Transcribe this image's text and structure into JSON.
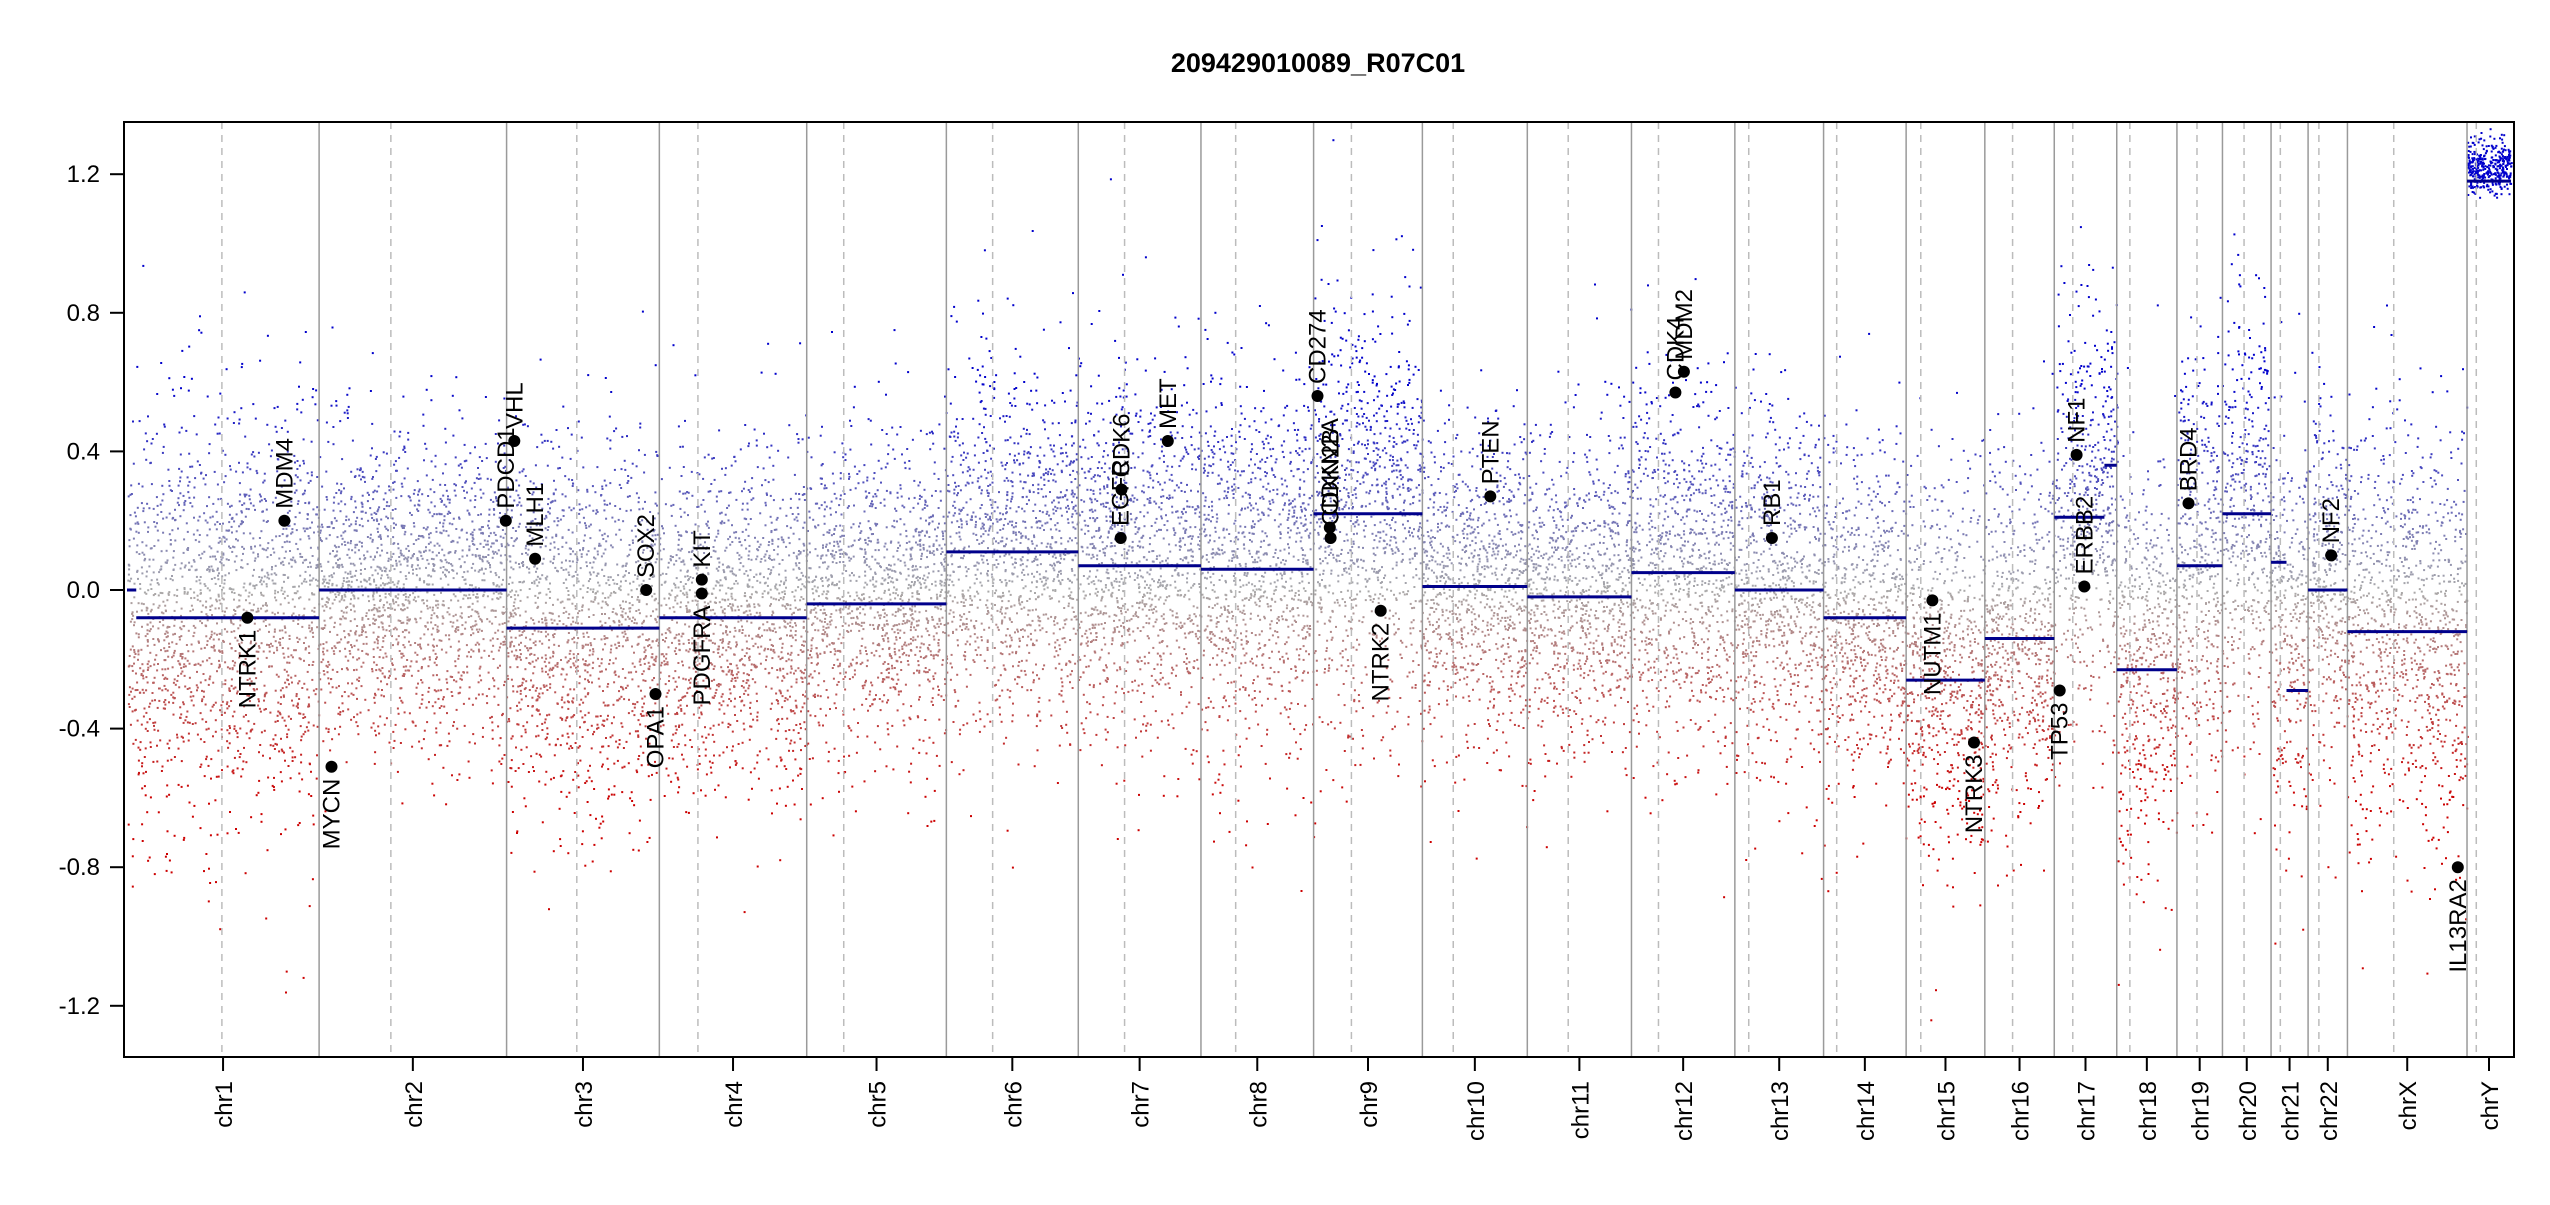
{
  "chart_data": {
    "type": "scatter",
    "title": "209429010089_R07C01",
    "xlabel": "",
    "ylabel": "",
    "ylim": [
      -1.35,
      1.35
    ],
    "yticks": [
      1.2,
      0.8,
      0.4,
      0.0,
      -0.4,
      -0.8,
      -1.2
    ],
    "ytick_labels": [
      "1.2",
      "0.8",
      "0.4",
      "0.0",
      "-0.4",
      "-0.8",
      "-1.2"
    ],
    "x_axis": "genomic position",
    "grid": false,
    "colors": {
      "gain": "#0000cc",
      "neutral": "#aaaaaa",
      "loss": "#cc0000",
      "segment": "#00008b",
      "gene_point": "#000000",
      "chrom_border": "#9a9a9a",
      "centromere": "#bcbcbc"
    },
    "chromosomes": [
      {
        "name": "chr1",
        "length": 249,
        "centromere": 123,
        "segments": [
          {
            "start": 0,
            "end": 12,
            "value": 0.0
          },
          {
            "start": 12,
            "end": 249,
            "value": -0.08
          }
        ],
        "level": -0.08,
        "spread": 0.3
      },
      {
        "name": "chr2",
        "length": 243,
        "centromere": 93,
        "segments": [
          {
            "start": 0,
            "end": 243,
            "value": 0.0
          }
        ],
        "level": 0.0,
        "spread": 0.22
      },
      {
        "name": "chr3",
        "length": 198,
        "centromere": 91,
        "segments": [
          {
            "start": 0,
            "end": 198,
            "value": -0.11
          }
        ],
        "level": -0.1,
        "spread": 0.27
      },
      {
        "name": "chr4",
        "length": 191,
        "centromere": 50,
        "segments": [
          {
            "start": 0,
            "end": 191,
            "value": -0.08
          }
        ],
        "level": -0.08,
        "spread": 0.24
      },
      {
        "name": "chr5",
        "length": 181,
        "centromere": 48,
        "segments": [
          {
            "start": 0,
            "end": 181,
            "value": -0.04
          }
        ],
        "level": -0.03,
        "spread": 0.22
      },
      {
        "name": "chr6",
        "length": 171,
        "centromere": 60,
        "segments": [
          {
            "start": 0,
            "end": 171,
            "value": 0.11
          }
        ],
        "level": 0.1,
        "spread": 0.26
      },
      {
        "name": "chr7",
        "length": 159,
        "centromere": 60,
        "segments": [
          {
            "start": 0,
            "end": 159,
            "value": 0.07
          }
        ],
        "level": 0.07,
        "spread": 0.27
      },
      {
        "name": "chr8",
        "length": 146,
        "centromere": 45,
        "segments": [
          {
            "start": 0,
            "end": 146,
            "value": 0.06
          }
        ],
        "level": 0.06,
        "spread": 0.28
      },
      {
        "name": "chr9",
        "length": 141,
        "centromere": 49,
        "segments": [
          {
            "start": 0,
            "end": 141,
            "value": 0.22
          }
        ],
        "level": 0.2,
        "spread": 0.3
      },
      {
        "name": "chr10",
        "length": 136,
        "centromere": 40,
        "segments": [
          {
            "start": 0,
            "end": 136,
            "value": 0.01
          }
        ],
        "level": 0.01,
        "spread": 0.23
      },
      {
        "name": "chr11",
        "length": 135,
        "centromere": 53,
        "segments": [
          {
            "start": 0,
            "end": 135,
            "value": -0.02
          }
        ],
        "level": -0.02,
        "spread": 0.23
      },
      {
        "name": "chr12",
        "length": 134,
        "centromere": 35,
        "segments": [
          {
            "start": 0,
            "end": 134,
            "value": 0.05
          }
        ],
        "level": 0.05,
        "spread": 0.27
      },
      {
        "name": "chr13",
        "length": 115,
        "centromere": 18,
        "segments": [
          {
            "start": 0,
            "end": 115,
            "value": 0.0
          }
        ],
        "level": 0.0,
        "spread": 0.25
      },
      {
        "name": "chr14",
        "length": 107,
        "centromere": 17,
        "segments": [
          {
            "start": 0,
            "end": 107,
            "value": -0.08
          }
        ],
        "level": -0.08,
        "spread": 0.25
      },
      {
        "name": "chr15",
        "length": 102,
        "centromere": 19,
        "segments": [
          {
            "start": 0,
            "end": 102,
            "value": -0.26
          }
        ],
        "level": -0.24,
        "spread": 0.28
      },
      {
        "name": "chr16",
        "length": 90,
        "centromere": 36,
        "segments": [
          {
            "start": 0,
            "end": 90,
            "value": -0.14
          }
        ],
        "level": -0.13,
        "spread": 0.26
      },
      {
        "name": "chr17",
        "length": 81,
        "centromere": 24,
        "segments": [
          {
            "start": 0,
            "end": 65,
            "value": 0.21
          },
          {
            "start": 65,
            "end": 81,
            "value": 0.36
          }
        ],
        "level": 0.25,
        "spread": 0.3
      },
      {
        "name": "chr18",
        "length": 78,
        "centromere": 17,
        "segments": [
          {
            "start": 0,
            "end": 78,
            "value": -0.23
          }
        ],
        "level": -0.23,
        "spread": 0.28
      },
      {
        "name": "chr19",
        "length": 59,
        "centromere": 26,
        "segments": [
          {
            "start": 0,
            "end": 59,
            "value": 0.07
          }
        ],
        "level": 0.07,
        "spread": 0.3
      },
      {
        "name": "chr20",
        "length": 63,
        "centromere": 28,
        "segments": [
          {
            "start": 0,
            "end": 63,
            "value": 0.22
          }
        ],
        "level": 0.22,
        "spread": 0.3
      },
      {
        "name": "chr21",
        "length": 48,
        "centromere": 12,
        "segments": [
          {
            "start": 0,
            "end": 20,
            "value": 0.08
          },
          {
            "start": 20,
            "end": 48,
            "value": -0.29
          }
        ],
        "level": -0.1,
        "spread": 0.28
      },
      {
        "name": "chr22",
        "length": 51,
        "centromere": 14,
        "segments": [
          {
            "start": 0,
            "end": 51,
            "value": 0.0
          }
        ],
        "level": 0.0,
        "spread": 0.25
      },
      {
        "name": "chrX",
        "length": 155,
        "centromere": 60,
        "segments": [
          {
            "start": 0,
            "end": 155,
            "value": -0.12
          }
        ],
        "level": -0.12,
        "spread": 0.3
      },
      {
        "name": "chrY",
        "length": 57,
        "centromere": 12,
        "segments": [
          {
            "start": 0,
            "end": 57,
            "value": 1.18
          }
        ],
        "level": 1.22,
        "spread": 0.04
      }
    ],
    "genes": [
      {
        "name": "NTRK1",
        "chrom": "chr1",
        "pos": 156,
        "value": -0.08,
        "label_side": "below"
      },
      {
        "name": "MDM4",
        "chrom": "chr1",
        "pos": 204,
        "value": 0.2,
        "label_side": "above"
      },
      {
        "name": "MYCN",
        "chrom": "chr2",
        "pos": 16,
        "value": -0.51,
        "label_side": "below"
      },
      {
        "name": "PDCD1",
        "chrom": "chr2",
        "pos": 242,
        "value": 0.2,
        "label_side": "above"
      },
      {
        "name": "VHL",
        "chrom": "chr3",
        "pos": 10,
        "value": 0.43,
        "label_side": "above"
      },
      {
        "name": "MLH1",
        "chrom": "chr3",
        "pos": 37,
        "value": 0.09,
        "label_side": "above"
      },
      {
        "name": "SOX2",
        "chrom": "chr3",
        "pos": 181,
        "value": 0.0,
        "label_side": "above"
      },
      {
        "name": "OPA1",
        "chrom": "chr3",
        "pos": 193,
        "value": -0.3,
        "label_side": "below"
      },
      {
        "name": "KIT",
        "chrom": "chr4",
        "pos": 55,
        "value": 0.03,
        "label_side": "above"
      },
      {
        "name": "PDGFRA",
        "chrom": "chr4",
        "pos": 55,
        "value": -0.01,
        "label_side": "below"
      },
      {
        "name": "EGFR",
        "chrom": "chr7",
        "pos": 55,
        "value": 0.15,
        "label_side": "above"
      },
      {
        "name": "CDK6",
        "chrom": "chr7",
        "pos": 56,
        "value": 0.29,
        "label_side": "above"
      },
      {
        "name": "MET",
        "chrom": "chr7",
        "pos": 116,
        "value": 0.43,
        "label_side": "above"
      },
      {
        "name": "CD274",
        "chrom": "chr9",
        "pos": 5,
        "value": 0.56,
        "label_side": "above"
      },
      {
        "name": "CDKN2A",
        "chrom": "chr9",
        "pos": 21,
        "value": 0.18,
        "label_side": "above"
      },
      {
        "name": "CDKN2B",
        "chrom": "chr9",
        "pos": 22,
        "value": 0.15,
        "label_side": "above"
      },
      {
        "name": "NTRK2",
        "chrom": "chr9",
        "pos": 87,
        "value": -0.06,
        "label_side": "below"
      },
      {
        "name": "PTEN",
        "chrom": "chr10",
        "pos": 88,
        "value": 0.27,
        "label_side": "above"
      },
      {
        "name": "CDK4",
        "chrom": "chr12",
        "pos": 57,
        "value": 0.57,
        "label_side": "above"
      },
      {
        "name": "MDM2",
        "chrom": "chr12",
        "pos": 68,
        "value": 0.63,
        "label_side": "above"
      },
      {
        "name": "RB1",
        "chrom": "chr13",
        "pos": 48,
        "value": 0.15,
        "label_side": "above"
      },
      {
        "name": "NUTM1",
        "chrom": "chr15",
        "pos": 34,
        "value": -0.03,
        "label_side": "below"
      },
      {
        "name": "NTRK3",
        "chrom": "chr15",
        "pos": 88,
        "value": -0.44,
        "label_side": "below"
      },
      {
        "name": "TP53",
        "chrom": "chr17",
        "pos": 7,
        "value": -0.29,
        "label_side": "below"
      },
      {
        "name": "NF1",
        "chrom": "chr17",
        "pos": 29,
        "value": 0.39,
        "label_side": "above"
      },
      {
        "name": "ERBB2",
        "chrom": "chr17",
        "pos": 39,
        "value": 0.01,
        "label_side": "above"
      },
      {
        "name": "BRD4",
        "chrom": "chr19",
        "pos": 15,
        "value": 0.25,
        "label_side": "above"
      },
      {
        "name": "NF2",
        "chrom": "chr22",
        "pos": 30,
        "value": 0.1,
        "label_side": "above"
      },
      {
        "name": "IL13RA2",
        "chrom": "chrX",
        "pos": 143,
        "value": -0.8,
        "label_side": "below"
      }
    ]
  }
}
